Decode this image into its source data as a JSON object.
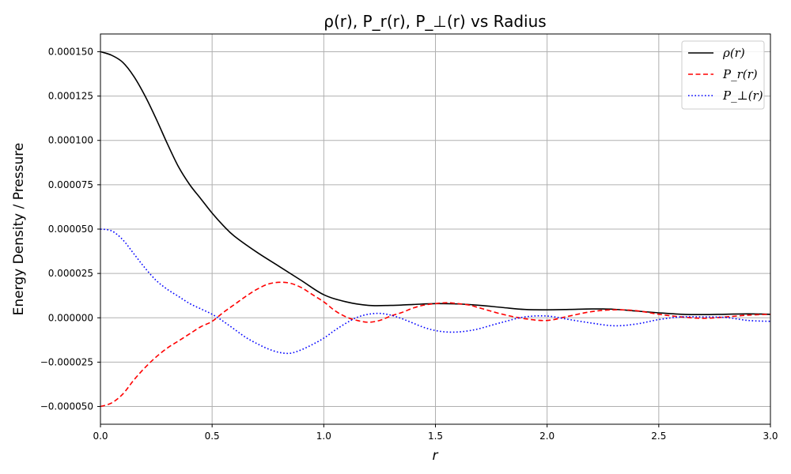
{
  "chart_data": {
    "type": "line",
    "title": "ρ(r), P_r(r), P_⊥(r) vs Radius",
    "xlabel": "r",
    "ylabel": "Energy Density / Pressure",
    "xlim": [
      0,
      3.0
    ],
    "ylim": [
      -6e-05,
      0.00016
    ],
    "xticks": [
      0,
      0.5,
      1.0,
      1.5,
      2.0,
      2.5,
      3.0
    ],
    "xtick_labels": [
      "0.0",
      "0.5",
      "1.0",
      "1.5",
      "2.0",
      "2.5",
      "3.0"
    ],
    "yticks": [
      -5e-05,
      -2.5e-05,
      0,
      2.5e-05,
      5e-05,
      7.5e-05,
      0.0001,
      0.000125,
      0.00015
    ],
    "ytick_labels": [
      "−0.000050",
      "−0.000025",
      "0.000000",
      "0.000025",
      "0.000050",
      "0.000075",
      "0.000100",
      "0.000125",
      "0.000150"
    ],
    "grid": true,
    "legend_position": "top-right",
    "series": [
      {
        "name": "ρ(r)",
        "color": "#000000",
        "dash": "solid",
        "x": [
          0,
          0.05,
          0.1,
          0.15,
          0.2,
          0.25,
          0.3,
          0.35,
          0.4,
          0.45,
          0.5,
          0.55,
          0.6,
          0.7,
          0.8,
          0.9,
          1.0,
          1.1,
          1.2,
          1.3,
          1.4,
          1.5,
          1.6,
          1.7,
          1.8,
          1.9,
          2.0,
          2.1,
          2.2,
          2.3,
          2.4,
          2.5,
          2.6,
          2.7,
          2.8,
          2.9,
          3.0
        ],
        "y": [
          0.00015,
          0.000148,
          0.000144,
          0.000136,
          0.000125,
          0.000112,
          9.8e-05,
          8.5e-05,
          7.5e-05,
          6.7e-05,
          5.9e-05,
          5.2e-05,
          4.6e-05,
          3.7e-05,
          2.9e-05,
          2.1e-05,
          1.3e-05,
          9e-06,
          7e-06,
          7e-06,
          7.5e-06,
          8e-06,
          7.8e-06,
          7e-06,
          5.8e-06,
          4.7e-06,
          4.5e-06,
          4.7e-06,
          5e-06,
          4.8e-06,
          3.8e-06,
          2.8e-06,
          2e-06,
          1.8e-06,
          2e-06,
          2.2e-06,
          2e-06
        ]
      },
      {
        "name": "P_r(r)",
        "color": "#ff0000",
        "dash": "dashed",
        "x": [
          0,
          0.05,
          0.1,
          0.15,
          0.2,
          0.25,
          0.3,
          0.35,
          0.4,
          0.45,
          0.5,
          0.55,
          0.6,
          0.65,
          0.7,
          0.75,
          0.8,
          0.85,
          0.9,
          0.95,
          1.0,
          1.05,
          1.1,
          1.15,
          1.2,
          1.25,
          1.3,
          1.35,
          1.4,
          1.45,
          1.5,
          1.55,
          1.6,
          1.65,
          1.7,
          1.8,
          1.9,
          2.0,
          2.1,
          2.2,
          2.3,
          2.4,
          2.5,
          2.6,
          2.7,
          2.8,
          2.9,
          3.0
        ],
        "y": [
          -5e-05,
          -4.8e-05,
          -4.3e-05,
          -3.5e-05,
          -2.8e-05,
          -2.2e-05,
          -1.7e-05,
          -1.3e-05,
          -9e-06,
          -5e-06,
          -2e-06,
          3e-06,
          7.5e-06,
          1.2e-05,
          1.6e-05,
          1.9e-05,
          2e-05,
          1.95e-05,
          1.7e-05,
          1.3e-05,
          9e-06,
          4e-06,
          5e-07,
          -1.5e-06,
          -2.5e-06,
          -1.5e-06,
          1e-06,
          3e-06,
          5.5e-06,
          7.2e-06,
          8e-06,
          8.5e-06,
          8e-06,
          7.2e-06,
          5.5e-06,
          2e-06,
          -5e-07,
          -1.5e-06,
          1e-06,
          3.5e-06,
          4.5e-06,
          4e-06,
          2e-06,
          5e-07,
          -3e-07,
          5e-07,
          1.5e-06,
          2e-06
        ]
      },
      {
        "name": "P_⊥(r)",
        "color": "#0000ff",
        "dash": "dotted",
        "x": [
          0,
          0.05,
          0.1,
          0.15,
          0.2,
          0.25,
          0.3,
          0.35,
          0.4,
          0.45,
          0.5,
          0.55,
          0.6,
          0.65,
          0.7,
          0.75,
          0.8,
          0.85,
          0.9,
          0.95,
          1.0,
          1.05,
          1.1,
          1.15,
          1.2,
          1.25,
          1.3,
          1.35,
          1.4,
          1.45,
          1.5,
          1.55,
          1.6,
          1.65,
          1.7,
          1.8,
          1.9,
          2.0,
          2.1,
          2.2,
          2.3,
          2.4,
          2.5,
          2.6,
          2.7,
          2.8,
          2.9,
          3.0
        ],
        "y": [
          5e-05,
          4.9e-05,
          4.4e-05,
          3.6e-05,
          2.8e-05,
          2.1e-05,
          1.6e-05,
          1.2e-05,
          8e-06,
          5e-06,
          2e-06,
          -2e-06,
          -6.5e-06,
          -1.1e-05,
          -1.45e-05,
          -1.75e-05,
          -1.95e-05,
          -2e-05,
          -1.8e-05,
          -1.5e-05,
          -1.15e-05,
          -7e-06,
          -3e-06,
          3e-07,
          2e-06,
          2.5e-06,
          1.5e-06,
          -5e-07,
          -3e-06,
          -5.5e-06,
          -7.2e-06,
          -8e-06,
          -8e-06,
          -7.3e-06,
          -6e-06,
          -2.5e-06,
          5e-07,
          1e-06,
          -1e-06,
          -3e-06,
          -4.5e-06,
          -3.5e-06,
          -1e-06,
          5e-07,
          5e-07,
          2e-07,
          -1.5e-06,
          -2e-06
        ]
      }
    ]
  }
}
